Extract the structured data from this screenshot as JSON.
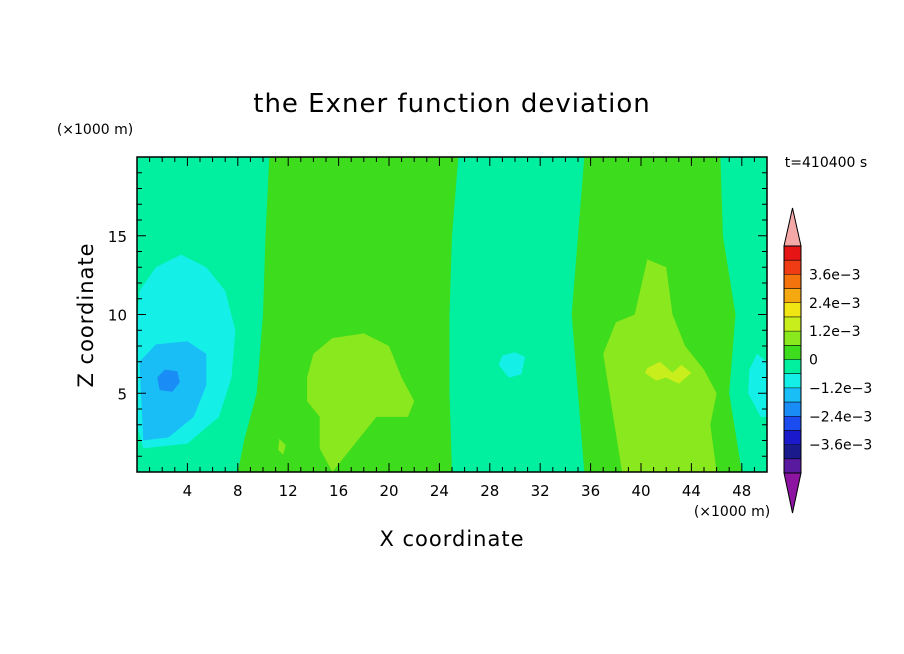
{
  "chart_data": {
    "type": "heatmap",
    "title": "the Exner function deviation",
    "xlabel": "X coordinate",
    "ylabel": "Z coordinate",
    "x_unit": "(×1000 m)",
    "y_unit": "(×1000 m)",
    "time_label": "t=410400 s",
    "xlim": [
      0,
      50
    ],
    "ylim": [
      0,
      20
    ],
    "x_ticks": [
      4,
      8,
      12,
      16,
      20,
      24,
      28,
      32,
      36,
      40,
      44,
      48
    ],
    "y_ticks": [
      5,
      10,
      15
    ],
    "colorbar": {
      "levels": [
        -0.0042,
        -0.0036,
        -0.003,
        -0.0024,
        -0.0018,
        -0.0012,
        -0.0006,
        0,
        0.0006,
        0.0012,
        0.0018,
        0.0024,
        0.003,
        0.0036,
        0.0042
      ],
      "colors": [
        "#5a1aa0",
        "#1a1a8c",
        "#1a1acc",
        "#1a4cf0",
        "#1a8cf5",
        "#18bef5",
        "#14f0e8",
        "#00f0a0",
        "#3ddc1c",
        "#8ae81e",
        "#c8ee1c",
        "#f0e614",
        "#f5a80f",
        "#f5730c",
        "#f03c14",
        "#e61414"
      ],
      "under_color": "#8c14a0",
      "over_color": "#f5a8a8",
      "tick_labels": [
        "3.6e−3",
        "2.4e−3",
        "1.2e−3",
        "0",
        "−1.2e−3",
        "−2.4e−3",
        "−3.6e−3"
      ],
      "tick_values": [
        0.0036,
        0.0024,
        0.0012,
        0,
        -0.0012,
        -0.0024,
        -0.0036
      ]
    },
    "regions": [
      {
        "level": -0.0003,
        "polygon": [
          [
            0,
            0
          ],
          [
            50,
            0
          ],
          [
            50,
            20
          ],
          [
            0,
            20
          ]
        ]
      },
      {
        "level": 0.0003,
        "polygon": [
          [
            10.5,
            20
          ],
          [
            25.5,
            20
          ],
          [
            25,
            15
          ],
          [
            24.8,
            10
          ],
          [
            24.8,
            5
          ],
          [
            25,
            0
          ],
          [
            8,
            0
          ],
          [
            8.5,
            2
          ],
          [
            9.5,
            5
          ],
          [
            10,
            10
          ],
          [
            10.2,
            15
          ]
        ]
      },
      {
        "level": 0.0003,
        "polygon": [
          [
            35.5,
            20
          ],
          [
            46.3,
            20
          ],
          [
            46.5,
            15
          ],
          [
            47.5,
            10
          ],
          [
            47,
            5
          ],
          [
            48,
            0
          ],
          [
            35.5,
            0
          ],
          [
            35,
            5
          ],
          [
            34.5,
            10
          ],
          [
            35,
            15
          ]
        ]
      },
      {
        "level": 0.0009,
        "polygon": [
          [
            13.5,
            6
          ],
          [
            14,
            7.5
          ],
          [
            15.5,
            8.5
          ],
          [
            18,
            8.8
          ],
          [
            20,
            8
          ],
          [
            21,
            6
          ],
          [
            22,
            4.5
          ],
          [
            21.5,
            3.5
          ],
          [
            19,
            3.5
          ],
          [
            18,
            2.5
          ],
          [
            16.5,
            1
          ],
          [
            15.5,
            0
          ],
          [
            14.5,
            1.5
          ],
          [
            14.5,
            3.5
          ],
          [
            13.5,
            4.5
          ]
        ]
      },
      {
        "level": 0.0009,
        "polygon": [
          [
            37,
            7.5
          ],
          [
            38,
            9.5
          ],
          [
            39.5,
            10
          ],
          [
            40.5,
            13.5
          ],
          [
            42,
            13
          ],
          [
            42.5,
            10
          ],
          [
            43.5,
            8
          ],
          [
            45,
            6.5
          ],
          [
            46,
            5
          ],
          [
            45.5,
            3
          ],
          [
            46,
            0
          ],
          [
            38.5,
            0
          ],
          [
            38,
            2.5
          ],
          [
            37.5,
            5
          ]
        ]
      },
      {
        "level": 0.0015,
        "polygon": [
          [
            40.3,
            6.3
          ],
          [
            41.2,
            5.8
          ],
          [
            42,
            6
          ],
          [
            43,
            5.6
          ],
          [
            44,
            6.3
          ],
          [
            43.2,
            6.8
          ],
          [
            42.5,
            6.3
          ],
          [
            41.5,
            7
          ],
          [
            40.5,
            6.6
          ]
        ]
      },
      {
        "level": 0.0009,
        "polygon": [
          [
            11.2,
            1.4
          ],
          [
            11.6,
            1.1
          ],
          [
            11.8,
            1.7
          ],
          [
            11.3,
            2.1
          ]
        ]
      },
      {
        "level": -0.0009,
        "polygon": [
          [
            0.5,
            1.5
          ],
          [
            4,
            1.8
          ],
          [
            6.5,
            3.5
          ],
          [
            7.5,
            6
          ],
          [
            7.8,
            9
          ],
          [
            7,
            11.5
          ],
          [
            5.5,
            13
          ],
          [
            3.5,
            13.8
          ],
          [
            1.5,
            13
          ],
          [
            0.2,
            11.5
          ],
          [
            0,
            9
          ],
          [
            0,
            3
          ]
        ]
      },
      {
        "level": -0.0015,
        "polygon": [
          [
            0.5,
            2
          ],
          [
            2.5,
            2.2
          ],
          [
            4.5,
            3.5
          ],
          [
            5.5,
            5.5
          ],
          [
            5.5,
            7.5
          ],
          [
            4,
            8.3
          ],
          [
            1.5,
            8.1
          ],
          [
            0.2,
            7
          ]
        ]
      },
      {
        "level": -0.0021,
        "polygon": [
          [
            1.8,
            5.2
          ],
          [
            2.8,
            5.1
          ],
          [
            3.4,
            5.7
          ],
          [
            3.2,
            6.4
          ],
          [
            2.2,
            6.5
          ],
          [
            1.6,
            6
          ]
        ]
      },
      {
        "level": -0.0009,
        "polygon": [
          [
            28.7,
            6.8
          ],
          [
            29.5,
            6
          ],
          [
            30.5,
            6.2
          ],
          [
            30.8,
            7.3
          ],
          [
            30,
            7.6
          ],
          [
            29,
            7.4
          ]
        ]
      },
      {
        "level": -0.0009,
        "polygon": [
          [
            48.5,
            5
          ],
          [
            49.5,
            3.5
          ],
          [
            50,
            3.5
          ],
          [
            50,
            7
          ],
          [
            49.2,
            7.5
          ],
          [
            48.6,
            6.5
          ]
        ]
      }
    ]
  }
}
